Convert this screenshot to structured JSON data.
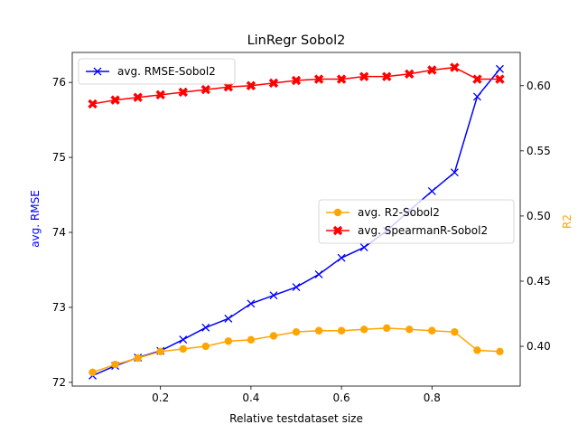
{
  "chart_data": {
    "type": "line",
    "title": "LinRegr Sobol2",
    "xlabel": "Relative testdataset size",
    "ylabel_left": "avg. RMSE",
    "ylabel_right": "R2",
    "xlim": [
      0.005,
      0.995
    ],
    "ylim_left": [
      71.95,
      76.4
    ],
    "ylim_right": [
      0.3695,
      0.6255
    ],
    "x_ticks": [
      0.2,
      0.4,
      0.6,
      0.8
    ],
    "x_tick_labels": [
      "0.2",
      "0.4",
      "0.6",
      "0.8"
    ],
    "y_left_ticks": [
      72,
      73,
      74,
      75,
      76
    ],
    "y_left_tick_labels": [
      "72",
      "73",
      "74",
      "75",
      "76"
    ],
    "y_right_ticks": [
      0.4,
      0.45,
      0.5,
      0.55,
      0.6
    ],
    "y_right_tick_labels": [
      "0.40",
      "0.45",
      "0.50",
      "0.55",
      "0.60"
    ],
    "x": [
      0.05,
      0.1,
      0.15,
      0.2,
      0.25,
      0.3,
      0.35,
      0.4,
      0.45,
      0.5,
      0.55,
      0.6,
      0.65,
      0.7,
      0.75,
      0.8,
      0.85,
      0.9,
      0.95
    ],
    "series": [
      {
        "name": "avg. RMSE-Sobol2",
        "axis": "left",
        "color": "#0000ff",
        "marker": "x",
        "values": [
          72.09,
          72.22,
          72.33,
          72.42,
          72.57,
          72.73,
          72.85,
          73.05,
          73.16,
          73.27,
          73.44,
          73.66,
          73.8,
          74.02,
          74.29,
          74.55,
          74.8,
          75.81,
          76.18
        ]
      },
      {
        "name": "avg. R2-Sobol2",
        "axis": "right",
        "color": "#ffa500",
        "marker": "o",
        "values": [
          0.38,
          0.386,
          0.391,
          0.396,
          0.398,
          0.4,
          0.404,
          0.405,
          0.408,
          0.411,
          0.412,
          0.412,
          0.413,
          0.414,
          0.413,
          0.412,
          0.411,
          0.397,
          0.396
        ]
      },
      {
        "name": "avg. SpearmanR-Sobol2",
        "axis": "right",
        "color": "#ff0000",
        "marker": "X",
        "values": [
          0.586,
          0.589,
          0.591,
          0.593,
          0.595,
          0.597,
          0.599,
          0.6,
          0.602,
          0.604,
          0.605,
          0.605,
          0.607,
          0.607,
          0.609,
          0.612,
          0.614,
          0.605,
          0.605
        ]
      }
    ],
    "legends": [
      {
        "location": "upper-left",
        "series": [
          "avg. RMSE-Sobol2"
        ]
      },
      {
        "location": "center-right",
        "series": [
          "avg. R2-Sobol2",
          "avg. SpearmanR-Sobol2"
        ]
      }
    ],
    "grid": false
  }
}
